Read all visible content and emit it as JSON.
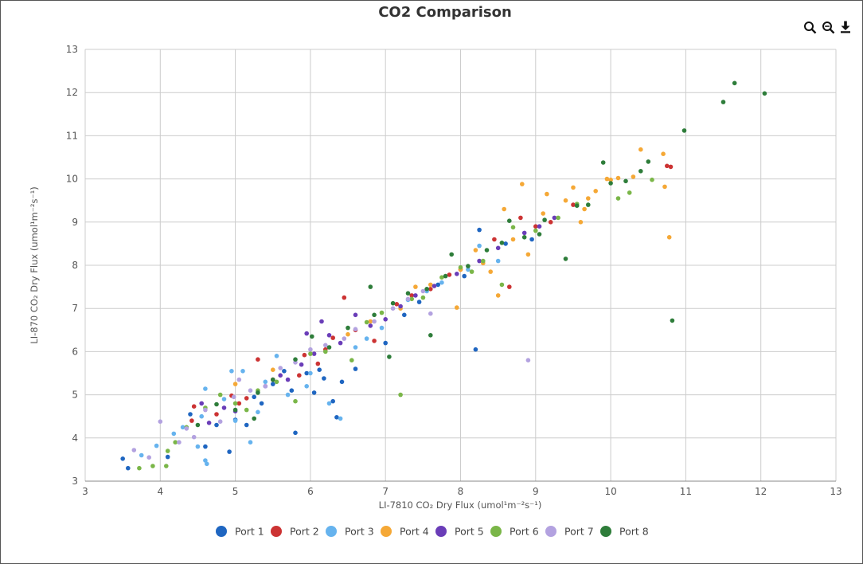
{
  "toolbar": {
    "zoom_in_icon": "zoom-in-icon",
    "zoom_out_icon": "zoom-out-icon",
    "download_icon": "download-icon"
  },
  "chart_data": {
    "type": "scatter",
    "title": "CO2 Comparison",
    "xlabel": "LI-7810 CO₂ Dry Flux (umol¹m⁻²s⁻¹)",
    "ylabel": "LI-870 CO₂ Dry Flux (umol¹m⁻²s⁻¹)",
    "xlim": [
      3,
      13
    ],
    "ylim": [
      3,
      13
    ],
    "xticks": [
      3,
      4,
      5,
      6,
      7,
      8,
      9,
      10,
      11,
      12,
      13
    ],
    "yticks": [
      3,
      4,
      5,
      6,
      7,
      8,
      9,
      10,
      11,
      12,
      13
    ],
    "grid": true,
    "legend_position": "bottom-center",
    "series": [
      {
        "name": "Port 1",
        "color": "#1f66c1",
        "points": [
          [
            3.5,
            3.52
          ],
          [
            3.57,
            3.3
          ],
          [
            4.1,
            3.56
          ],
          [
            4.6,
            3.8
          ],
          [
            4.75,
            4.3
          ],
          [
            4.92,
            3.68
          ],
          [
            5.0,
            4.42
          ],
          [
            5.35,
            4.8
          ],
          [
            5.5,
            5.25
          ],
          [
            5.65,
            5.55
          ],
          [
            5.75,
            5.1
          ],
          [
            5.8,
            4.12
          ],
          [
            6.05,
            5.05
          ],
          [
            6.12,
            5.58
          ],
          [
            6.18,
            5.38
          ],
          [
            6.3,
            4.85
          ],
          [
            6.35,
            4.48
          ],
          [
            6.42,
            5.3
          ],
          [
            6.6,
            5.6
          ],
          [
            7.0,
            6.2
          ],
          [
            7.25,
            6.85
          ],
          [
            7.45,
            7.15
          ],
          [
            7.7,
            7.55
          ],
          [
            8.05,
            7.75
          ],
          [
            8.2,
            6.05
          ],
          [
            8.25,
            8.82
          ],
          [
            8.6,
            8.5
          ],
          [
            8.95,
            8.6
          ],
          [
            5.15,
            4.3
          ],
          [
            5.95,
            5.5
          ],
          [
            4.4,
            4.55
          ],
          [
            5.25,
            4.95
          ]
        ]
      },
      {
        "name": "Port 2",
        "color": "#cc3333",
        "points": [
          [
            4.42,
            4.4
          ],
          [
            4.45,
            4.73
          ],
          [
            4.75,
            4.55
          ],
          [
            4.95,
            4.98
          ],
          [
            5.15,
            4.92
          ],
          [
            5.3,
            5.82
          ],
          [
            5.5,
            5.35
          ],
          [
            5.85,
            5.45
          ],
          [
            5.92,
            5.92
          ],
          [
            6.2,
            6.05
          ],
          [
            6.3,
            6.32
          ],
          [
            6.45,
            7.25
          ],
          [
            6.6,
            6.5
          ],
          [
            6.85,
            6.25
          ],
          [
            7.15,
            7.1
          ],
          [
            7.35,
            7.3
          ],
          [
            7.6,
            7.45
          ],
          [
            8.0,
            7.9
          ],
          [
            8.45,
            8.6
          ],
          [
            8.65,
            7.5
          ],
          [
            8.8,
            9.1
          ],
          [
            9.2,
            9.0
          ],
          [
            9.5,
            9.4
          ],
          [
            10.75,
            10.3
          ],
          [
            10.8,
            10.28
          ],
          [
            6.1,
            5.72
          ],
          [
            5.05,
            4.8
          ],
          [
            7.85,
            7.78
          ],
          [
            9.0,
            8.9
          ]
        ]
      },
      {
        "name": "Port 3",
        "color": "#66b3ee",
        "points": [
          [
            3.75,
            3.6
          ],
          [
            3.95,
            3.82
          ],
          [
            4.18,
            4.1
          ],
          [
            4.3,
            4.25
          ],
          [
            4.55,
            4.5
          ],
          [
            4.6,
            5.14
          ],
          [
            4.62,
            3.4
          ],
          [
            4.6,
            3.48
          ],
          [
            4.95,
            5.55
          ],
          [
            5.0,
            4.4
          ],
          [
            5.1,
            5.55
          ],
          [
            5.2,
            3.9
          ],
          [
            5.4,
            5.3
          ],
          [
            5.55,
            5.9
          ],
          [
            5.7,
            5.0
          ],
          [
            5.95,
            5.2
          ],
          [
            6.25,
            4.8
          ],
          [
            6.4,
            4.45
          ],
          [
            6.6,
            6.1
          ],
          [
            6.75,
            6.3
          ],
          [
            6.95,
            6.55
          ],
          [
            7.3,
            7.2
          ],
          [
            7.55,
            7.4
          ],
          [
            7.75,
            7.6
          ],
          [
            8.1,
            7.9
          ],
          [
            8.25,
            8.45
          ],
          [
            8.5,
            8.1
          ],
          [
            4.5,
            3.8
          ],
          [
            5.3,
            4.6
          ],
          [
            6.0,
            5.5
          ],
          [
            4.85,
            4.9
          ]
        ]
      },
      {
        "name": "Port 4",
        "color": "#f5a836",
        "points": [
          [
            5.0,
            5.25
          ],
          [
            5.5,
            5.58
          ],
          [
            6.5,
            6.4
          ],
          [
            6.8,
            6.7
          ],
          [
            7.2,
            7.0
          ],
          [
            7.4,
            7.5
          ],
          [
            7.6,
            7.55
          ],
          [
            7.95,
            7.02
          ],
          [
            8.0,
            7.9
          ],
          [
            8.2,
            8.35
          ],
          [
            8.3,
            8.05
          ],
          [
            8.4,
            7.85
          ],
          [
            8.5,
            7.3
          ],
          [
            8.58,
            9.3
          ],
          [
            8.7,
            8.6
          ],
          [
            8.82,
            9.88
          ],
          [
            8.9,
            8.25
          ],
          [
            9.1,
            9.2
          ],
          [
            9.15,
            9.65
          ],
          [
            9.4,
            9.5
          ],
          [
            9.5,
            9.8
          ],
          [
            9.6,
            9.0
          ],
          [
            9.7,
            9.55
          ],
          [
            9.8,
            9.72
          ],
          [
            9.95,
            10.0
          ],
          [
            10.1,
            10.02
          ],
          [
            10.3,
            10.05
          ],
          [
            10.4,
            10.68
          ],
          [
            10.7,
            10.58
          ],
          [
            10.72,
            9.82
          ],
          [
            10.78,
            8.65
          ],
          [
            10.0,
            9.98
          ],
          [
            9.65,
            9.3
          ]
        ]
      },
      {
        "name": "Port 5",
        "color": "#6a3db8",
        "points": [
          [
            4.65,
            4.35
          ],
          [
            4.85,
            4.7
          ],
          [
            5.0,
            4.62
          ],
          [
            5.4,
            5.2
          ],
          [
            5.6,
            5.45
          ],
          [
            5.88,
            5.7
          ],
          [
            5.95,
            6.42
          ],
          [
            6.05,
            5.95
          ],
          [
            6.25,
            6.38
          ],
          [
            6.4,
            6.2
          ],
          [
            6.6,
            6.85
          ],
          [
            6.8,
            6.6
          ],
          [
            7.0,
            6.75
          ],
          [
            7.2,
            7.05
          ],
          [
            7.4,
            7.3
          ],
          [
            7.65,
            7.52
          ],
          [
            7.95,
            7.8
          ],
          [
            8.25,
            8.1
          ],
          [
            8.5,
            8.4
          ],
          [
            8.85,
            8.75
          ],
          [
            9.05,
            8.9
          ],
          [
            9.25,
            9.1
          ],
          [
            5.7,
            5.35
          ],
          [
            6.15,
            6.7
          ],
          [
            4.55,
            4.8
          ]
        ]
      },
      {
        "name": "Port 6",
        "color": "#7ab648",
        "points": [
          [
            3.72,
            3.3
          ],
          [
            3.9,
            3.35
          ],
          [
            4.08,
            3.35
          ],
          [
            4.2,
            3.9
          ],
          [
            4.35,
            4.25
          ],
          [
            4.6,
            4.7
          ],
          [
            4.8,
            5.0
          ],
          [
            5.0,
            4.8
          ],
          [
            5.3,
            5.1
          ],
          [
            5.55,
            5.3
          ],
          [
            5.8,
            4.85
          ],
          [
            6.0,
            5.95
          ],
          [
            6.2,
            6.0
          ],
          [
            6.55,
            5.8
          ],
          [
            6.75,
            6.68
          ],
          [
            6.95,
            6.9
          ],
          [
            7.2,
            5.0
          ],
          [
            7.35,
            7.22
          ],
          [
            7.5,
            7.25
          ],
          [
            7.75,
            7.72
          ],
          [
            8.0,
            7.95
          ],
          [
            8.15,
            7.85
          ],
          [
            8.3,
            8.1
          ],
          [
            8.55,
            7.55
          ],
          [
            8.7,
            8.88
          ],
          [
            9.0,
            8.8
          ],
          [
            9.3,
            9.1
          ],
          [
            9.55,
            9.42
          ],
          [
            10.1,
            9.55
          ],
          [
            10.25,
            9.68
          ],
          [
            10.55,
            9.98
          ],
          [
            4.1,
            3.7
          ],
          [
            5.15,
            4.65
          ]
        ]
      },
      {
        "name": "Port 7",
        "color": "#b3a2e0",
        "points": [
          [
            3.65,
            3.72
          ],
          [
            3.85,
            3.55
          ],
          [
            4.0,
            4.38
          ],
          [
            4.25,
            3.9
          ],
          [
            4.45,
            4.02
          ],
          [
            4.6,
            4.65
          ],
          [
            4.8,
            4.38
          ],
          [
            4.98,
            4.95
          ],
          [
            5.2,
            5.1
          ],
          [
            5.4,
            5.2
          ],
          [
            5.6,
            5.62
          ],
          [
            5.8,
            5.75
          ],
          [
            6.0,
            6.05
          ],
          [
            6.2,
            6.15
          ],
          [
            6.45,
            6.3
          ],
          [
            6.6,
            6.52
          ],
          [
            6.85,
            6.7
          ],
          [
            7.1,
            7.0
          ],
          [
            7.3,
            7.22
          ],
          [
            7.5,
            7.4
          ],
          [
            7.6,
            6.88
          ],
          [
            8.9,
            5.8
          ],
          [
            4.35,
            4.22
          ],
          [
            5.05,
            5.35
          ]
        ]
      },
      {
        "name": "Port 8",
        "color": "#2e7d3a",
        "points": [
          [
            4.5,
            4.3
          ],
          [
            4.75,
            4.78
          ],
          [
            5.0,
            4.65
          ],
          [
            5.3,
            5.05
          ],
          [
            5.5,
            5.35
          ],
          [
            5.8,
            5.82
          ],
          [
            6.02,
            6.35
          ],
          [
            6.25,
            6.1
          ],
          [
            6.5,
            6.55
          ],
          [
            6.8,
            7.5
          ],
          [
            6.85,
            6.85
          ],
          [
            7.05,
            5.88
          ],
          [
            7.1,
            7.12
          ],
          [
            7.3,
            7.35
          ],
          [
            7.55,
            7.45
          ],
          [
            7.8,
            7.75
          ],
          [
            7.88,
            8.25
          ],
          [
            8.1,
            7.98
          ],
          [
            8.35,
            8.35
          ],
          [
            8.55,
            8.52
          ],
          [
            8.65,
            9.03
          ],
          [
            8.85,
            8.65
          ],
          [
            9.05,
            8.72
          ],
          [
            9.12,
            9.05
          ],
          [
            9.4,
            8.15
          ],
          [
            9.55,
            9.38
          ],
          [
            9.7,
            9.4
          ],
          [
            9.9,
            10.38
          ],
          [
            10.0,
            9.9
          ],
          [
            10.4,
            10.18
          ],
          [
            10.5,
            10.4
          ],
          [
            10.82,
            6.72
          ],
          [
            10.98,
            11.12
          ],
          [
            11.5,
            11.78
          ],
          [
            11.65,
            12.22
          ],
          [
            12.05,
            11.98
          ],
          [
            10.2,
            9.95
          ],
          [
            7.6,
            6.38
          ],
          [
            5.25,
            4.45
          ]
        ]
      }
    ]
  }
}
